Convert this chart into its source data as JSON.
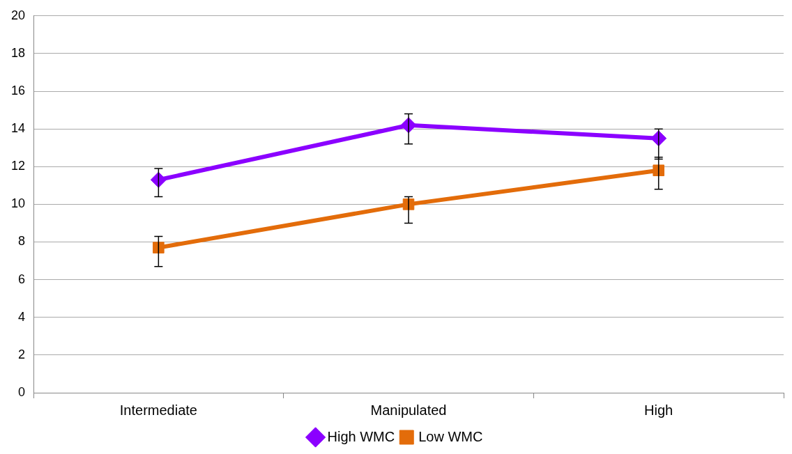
{
  "chart_data": {
    "type": "line",
    "categories": [
      "Intermediate",
      "Manipulated",
      "High"
    ],
    "series": [
      {
        "name": "High WMC",
        "color": "#8b00ff",
        "marker": "diamond",
        "values": [
          11.3,
          14.2,
          13.5
        ],
        "errors": [
          [
            10.4,
            11.9
          ],
          [
            13.2,
            14.8
          ],
          [
            12.4,
            14.0
          ]
        ]
      },
      {
        "name": "Low WMC",
        "color": "#e36c0a",
        "marker": "square",
        "values": [
          7.7,
          10.0,
          11.8
        ],
        "errors": [
          [
            6.7,
            8.3
          ],
          [
            9.0,
            10.4
          ],
          [
            10.8,
            12.5
          ]
        ]
      }
    ],
    "ylim": [
      0,
      20
    ],
    "yticks": [
      0,
      2,
      4,
      6,
      8,
      10,
      12,
      14,
      16,
      18,
      20
    ],
    "grid": "y",
    "legend": "bottom",
    "line_style": "solid"
  }
}
